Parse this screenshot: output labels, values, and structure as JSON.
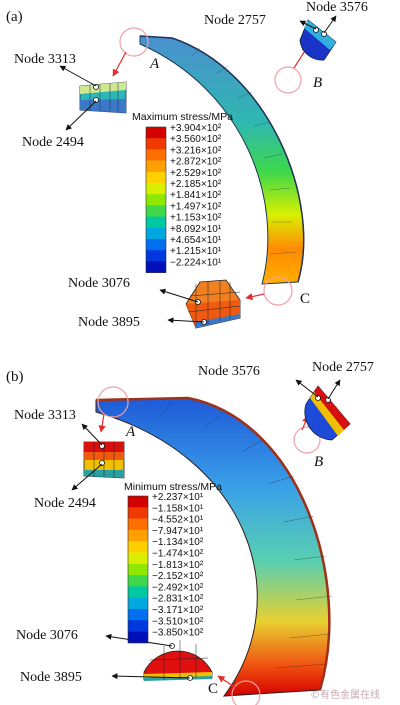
{
  "panels": [
    {
      "id": "a",
      "label": "(a)",
      "legend_title": "Maximum stress/MPa",
      "legend_values": [
        "+3.904×10²",
        "+3.560×10²",
        "+3.216×10²",
        "+2.872×10²",
        "+2.529×10²",
        "+2.185×10²",
        "+1.841×10²",
        "+1.497×10²",
        "+1.153×10²",
        "+8.092×10¹",
        "+4.654×10¹",
        "+1.215×10¹",
        "−2.224×10¹"
      ],
      "nodes": {
        "n3313": "Node 3313",
        "n2494": "Node 2494",
        "n2757": "Node 2757",
        "n3576": "Node 3576",
        "n3076": "Node 3076",
        "n3895": "Node 3895"
      },
      "points": {
        "A": "A",
        "B": "B",
        "C": "C"
      }
    },
    {
      "id": "b",
      "label": "(b)",
      "legend_title": "Minimum stress/MPa",
      "legend_values": [
        "+2.237×10¹",
        "−1.158×10¹",
        "−4.552×10¹",
        "−7.947×10¹",
        "−1.134×10²",
        "−1.474×10²",
        "−1.813×10²",
        "−2.152×10²",
        "−2.492×10²",
        "−2.831×10²",
        "−3.171×10²",
        "−3.510×10²",
        "−3.850×10²"
      ],
      "nodes": {
        "n3313": "Node 3313",
        "n2494": "Node 2494",
        "n3576": "Node 3576",
        "n2757": "Node 2757",
        "n3076": "Node 3076",
        "n3895": "Node 3895"
      },
      "points": {
        "A": "A",
        "B": "B",
        "C": "C"
      }
    }
  ],
  "watermark": "©有色金属在线",
  "colors": {
    "scale": [
      "#d40000",
      "#f03a00",
      "#ff6f00",
      "#ffa000",
      "#ffd000",
      "#d8f000",
      "#8ee800",
      "#3ed84a",
      "#00c8a0",
      "#00a8e0",
      "#0070f0",
      "#0038e0",
      "#0010b8"
    ],
    "arrow": "#e03030",
    "circle": "#f0a0a8"
  }
}
